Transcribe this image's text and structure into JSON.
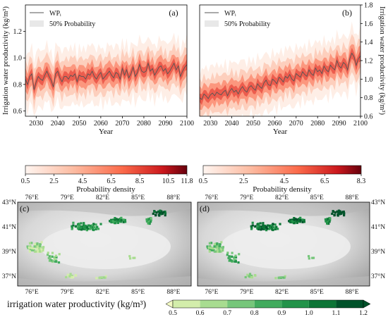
{
  "chart_data": [
    {
      "panel": "(a)",
      "type": "line",
      "ylabel": "Irrigation water productivity (kg/m³)",
      "xlabel": "Year",
      "xlim": [
        2025,
        2100
      ],
      "ylim": [
        0.56,
        1.4
      ],
      "xticks": [
        "2030",
        "2040",
        "2050",
        "2060",
        "2070",
        "2080",
        "2090",
        "2100"
      ],
      "yticks": [
        "0.6",
        "0.8",
        "1.0",
        "1.2"
      ],
      "legend": [
        "WPᵢ",
        "50% Probability"
      ],
      "legend_position": "top-left",
      "series": [
        {
          "x": [
            2025,
            2026,
            2027,
            2028,
            2029,
            2030,
            2031,
            2032,
            2033,
            2034,
            2035,
            2036,
            2037,
            2038,
            2039,
            2040,
            2041,
            2042,
            2043,
            2044,
            2045,
            2046,
            2047,
            2048,
            2049,
            2050,
            2051,
            2052,
            2053,
            2054,
            2055,
            2056,
            2057,
            2058,
            2059,
            2060,
            2061,
            2062,
            2063,
            2064,
            2065,
            2066,
            2067,
            2068,
            2069,
            2070,
            2071,
            2072,
            2073,
            2074,
            2075,
            2076,
            2077,
            2078,
            2079,
            2080,
            2081,
            2082,
            2083,
            2084,
            2085,
            2086,
            2087,
            2088,
            2089,
            2090,
            2091,
            2092,
            2093,
            2094,
            2095,
            2096,
            2097,
            2098,
            2099,
            2100
          ],
          "y": [
            0.84,
            0.8,
            0.86,
            0.88,
            0.76,
            0.82,
            0.86,
            0.84,
            0.83,
            0.87,
            0.9,
            0.86,
            0.83,
            0.78,
            0.88,
            0.9,
            0.85,
            0.82,
            0.86,
            0.86,
            0.84,
            0.87,
            0.86,
            0.88,
            0.82,
            0.87,
            0.86,
            0.86,
            0.84,
            0.88,
            0.87,
            0.9,
            0.86,
            0.84,
            0.87,
            0.89,
            0.84,
            0.86,
            0.88,
            0.9,
            0.87,
            0.85,
            0.89,
            0.88,
            0.84,
            0.92,
            0.87,
            0.91,
            0.85,
            0.88,
            0.93,
            0.86,
            0.89,
            0.95,
            0.9,
            0.89,
            0.9,
            0.96,
            0.9,
            0.92,
            0.87,
            0.9,
            0.93,
            0.94,
            0.9,
            0.92,
            0.88,
            0.9,
            0.93,
            0.96,
            0.91,
            0.94,
            0.86,
            0.9,
            0.93,
            0.95
          ]
        }
      ],
      "colorbar": {
        "label": "Probability density",
        "ticks": [
          "0.5",
          "2.5",
          "4.5",
          "6.5",
          "8.5",
          "10.5",
          "11.8"
        ]
      }
    },
    {
      "panel": "(b)",
      "type": "line",
      "ylabel": "Irrigation water productivity (kg/m³)",
      "xlabel": "Year",
      "xlim": [
        2025,
        2100
      ],
      "ylim": [
        0.6,
        1.8
      ],
      "xticks": [
        "2030",
        "2040",
        "2050",
        "2060",
        "2070",
        "2080",
        "2090",
        "2100"
      ],
      "yticks": [
        "0.6",
        "0.8",
        "1.0",
        "1.2",
        "1.4",
        "1.6",
        "1.8"
      ],
      "legend": [
        "WPᵢ",
        "50% Probability"
      ],
      "legend_position": "top-left",
      "series": [
        {
          "x": [
            2025,
            2026,
            2027,
            2028,
            2029,
            2030,
            2031,
            2032,
            2033,
            2034,
            2035,
            2036,
            2037,
            2038,
            2039,
            2040,
            2041,
            2042,
            2043,
            2044,
            2045,
            2046,
            2047,
            2048,
            2049,
            2050,
            2051,
            2052,
            2053,
            2054,
            2055,
            2056,
            2057,
            2058,
            2059,
            2060,
            2061,
            2062,
            2063,
            2064,
            2065,
            2066,
            2067,
            2068,
            2069,
            2070,
            2071,
            2072,
            2073,
            2074,
            2075,
            2076,
            2077,
            2078,
            2079,
            2080,
            2081,
            2082,
            2083,
            2084,
            2085,
            2086,
            2087,
            2088,
            2089,
            2090,
            2091,
            2092,
            2093,
            2094,
            2095,
            2096,
            2097,
            2098,
            2099,
            2100
          ],
          "y": [
            0.8,
            0.78,
            0.84,
            0.82,
            0.79,
            0.83,
            0.85,
            0.82,
            0.86,
            0.84,
            0.83,
            0.86,
            0.88,
            0.82,
            0.87,
            0.9,
            0.86,
            0.88,
            0.84,
            0.89,
            0.92,
            0.88,
            0.86,
            0.91,
            0.93,
            0.9,
            0.88,
            0.95,
            0.92,
            0.9,
            0.96,
            0.99,
            0.94,
            0.93,
            1.0,
            0.98,
            0.95,
            1.02,
            1.0,
            0.97,
            1.03,
            1.01,
            1.05,
            1.0,
            0.98,
            1.06,
            1.04,
            1.02,
            1.08,
            1.05,
            1.03,
            1.1,
            1.06,
            1.04,
            1.12,
            1.08,
            1.1,
            1.06,
            1.14,
            1.1,
            1.08,
            1.15,
            1.12,
            1.1,
            1.2,
            1.14,
            1.12,
            1.18,
            1.16,
            1.1,
            1.22,
            1.28,
            1.24,
            1.15,
            1.22,
            1.25
          ]
        }
      ],
      "colorbar": {
        "label": "Probability density",
        "ticks": [
          "0.5",
          "2.5",
          "4.5",
          "6.5",
          "8.3"
        ]
      }
    }
  ],
  "maps": {
    "left_panel_label": "(c)",
    "right_panel_label": "(d)",
    "lon_ticks": [
      "76°E",
      "79°E",
      "82°E",
      "85°E",
      "88°E"
    ],
    "lat_ticks": [
      "43°N",
      "41°N",
      "39°N",
      "37°N"
    ],
    "colorbar": {
      "label": "irrigation water productivity (kg/m³)",
      "ticks": [
        "0.5",
        "0.6",
        "0.7",
        "0.8",
        "0.9",
        "1.0",
        "1.1",
        "1.2"
      ],
      "colors": [
        "#f3f9c4",
        "#d3edab",
        "#a8dc90",
        "#76c67a",
        "#41ab5d",
        "#23934a",
        "#0d7536",
        "#00522a"
      ]
    }
  },
  "colors": {
    "line": "#555555",
    "density_low": "#fff5f0",
    "density_high": "#a50f15",
    "terrain_light": "#e6e6e6",
    "terrain_dark": "#9a9a9a"
  }
}
